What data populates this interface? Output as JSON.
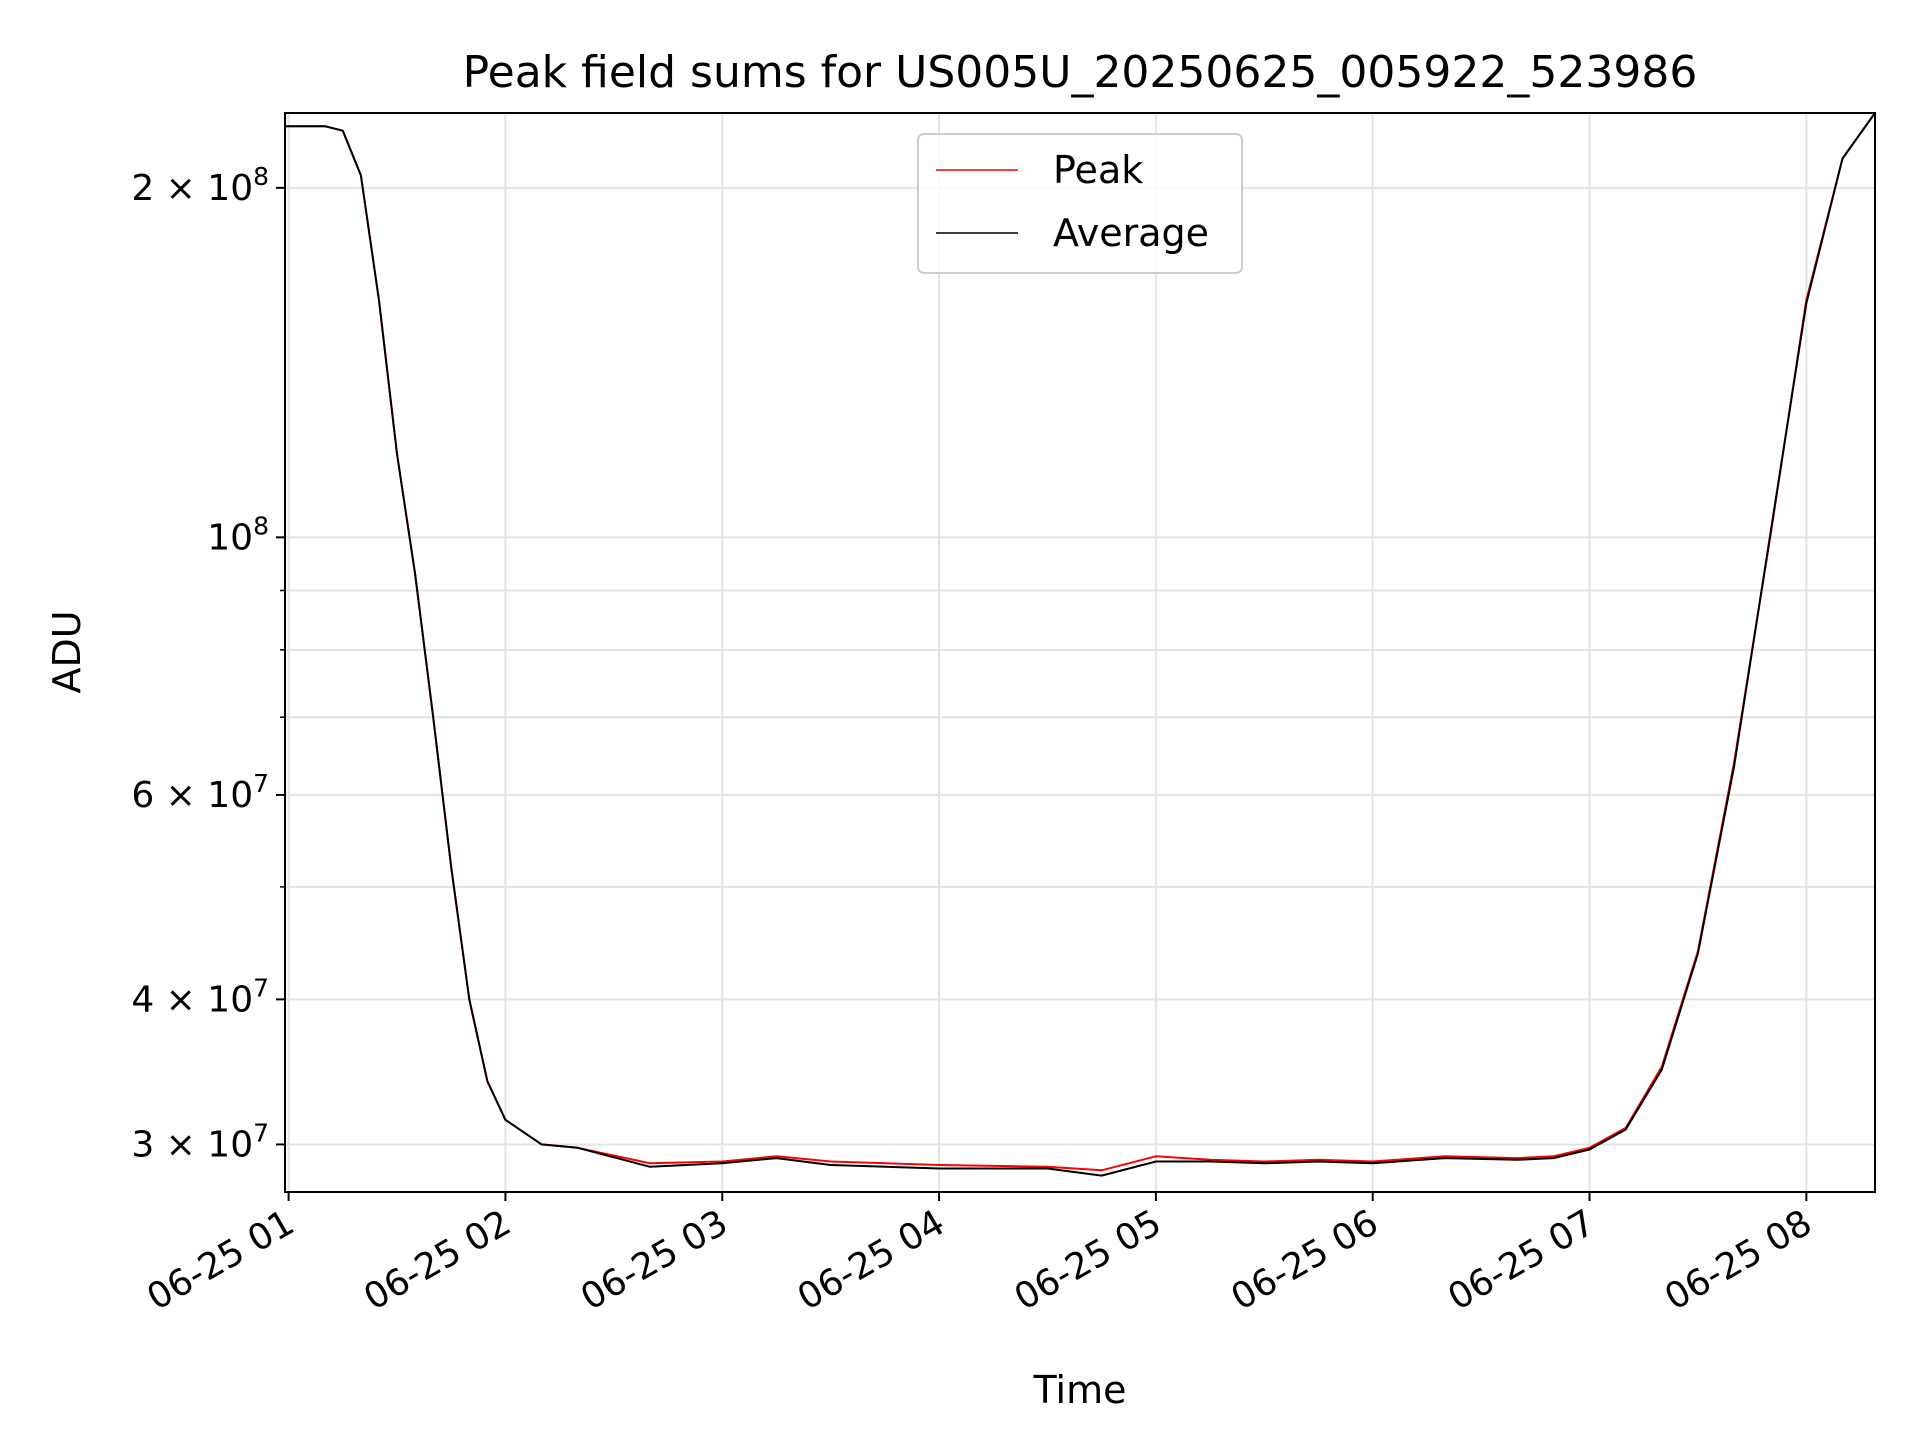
{
  "chart_data": {
    "type": "line",
    "title": "Peak field sums for US005U_20250625_005922_523986",
    "xlabel": "Time",
    "ylabel": "ADU",
    "yscale": "log",
    "ylim": [
      27300000,
      232000000
    ],
    "xlim": [
      "06-25 00:59",
      "06-25 08:19"
    ],
    "x_ticks": [
      "06-25 01",
      "06-25 02",
      "06-25 03",
      "06-25 04",
      "06-25 05",
      "06-25 06",
      "06-25 07",
      "06-25 08"
    ],
    "y_ticks": [
      {
        "value": 30000000,
        "base": "3 × 10",
        "exp": "7"
      },
      {
        "value": 40000000,
        "base": "4 × 10",
        "exp": "7"
      },
      {
        "value": 60000000,
        "base": "6 × 10",
        "exp": "7"
      },
      {
        "value": 100000000,
        "base": "10",
        "exp": "8"
      },
      {
        "value": 200000000,
        "base": "2 × 10",
        "exp": "8"
      }
    ],
    "grid": true,
    "legend_position": "upper-center",
    "series": [
      {
        "name": "Peak",
        "color": "#ff0000",
        "x": [
          "06-25 00:59",
          "06-25 01:10",
          "06-25 01:15",
          "06-25 01:20",
          "06-25 01:25",
          "06-25 01:30",
          "06-25 01:35",
          "06-25 01:40",
          "06-25 01:45",
          "06-25 01:50",
          "06-25 01:55",
          "06-25 02:00",
          "06-25 02:10",
          "06-25 02:20",
          "06-25 02:40",
          "06-25 03:00",
          "06-25 03:15",
          "06-25 03:30",
          "06-25 04:00",
          "06-25 04:30",
          "06-25 04:45",
          "06-25 05:00",
          "06-25 05:15",
          "06-25 05:30",
          "06-25 05:45",
          "06-25 06:00",
          "06-25 06:20",
          "06-25 06:40",
          "06-25 06:50",
          "06-25 07:00",
          "06-25 07:10",
          "06-25 07:20",
          "06-25 07:30",
          "06-25 07:40",
          "06-25 07:50",
          "06-25 08:00",
          "06-25 08:10",
          "06-25 08:19"
        ],
        "y": [
          226000000,
          226000000,
          224000000,
          205000000,
          160000000,
          118000000,
          93000000,
          70000000,
          52000000,
          40000000,
          34000000,
          31500000,
          30000000,
          29800000,
          28900000,
          29000000,
          29300000,
          29000000,
          28800000,
          28700000,
          28500000,
          29300000,
          29100000,
          29000000,
          29100000,
          29000000,
          29300000,
          29200000,
          29300000,
          29800000,
          31000000,
          35000000,
          44000000,
          64000000,
          100000000,
          160000000,
          212000000,
          232000000
        ]
      },
      {
        "name": "Average",
        "color": "#000000",
        "x": [
          "06-25 00:59",
          "06-25 01:10",
          "06-25 01:15",
          "06-25 01:20",
          "06-25 01:25",
          "06-25 01:30",
          "06-25 01:35",
          "06-25 01:40",
          "06-25 01:45",
          "06-25 01:50",
          "06-25 01:55",
          "06-25 02:00",
          "06-25 02:10",
          "06-25 02:20",
          "06-25 02:40",
          "06-25 03:00",
          "06-25 03:15",
          "06-25 03:30",
          "06-25 04:00",
          "06-25 04:30",
          "06-25 04:45",
          "06-25 05:00",
          "06-25 05:15",
          "06-25 05:30",
          "06-25 05:45",
          "06-25 06:00",
          "06-25 06:20",
          "06-25 06:40",
          "06-25 06:50",
          "06-25 07:00",
          "06-25 07:10",
          "06-25 07:20",
          "06-25 07:30",
          "06-25 07:40",
          "06-25 08:00",
          "06-25 08:10",
          "06-25 08:19"
        ],
        "y": [
          226000000,
          226000000,
          224000000,
          205000000,
          160000000,
          118000000,
          93000000,
          70000000,
          52000000,
          40000000,
          34000000,
          31500000,
          30000000,
          29800000,
          28700000,
          28900000,
          29200000,
          28800000,
          28600000,
          28600000,
          28200000,
          29000000,
          29000000,
          28900000,
          29000000,
          28900000,
          29200000,
          29100000,
          29200000,
          29700000,
          30900000,
          34800000,
          43800000,
          63500000,
          159000000,
          212000000,
          232000000
        ]
      }
    ]
  }
}
